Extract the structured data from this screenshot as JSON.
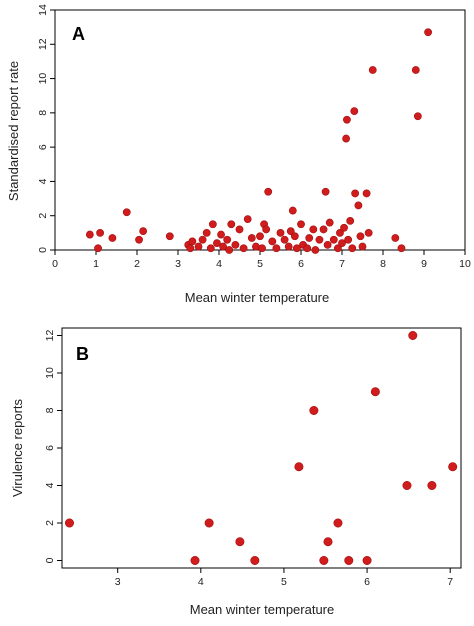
{
  "colors": {
    "point": "#d01c1c",
    "point_edge": "#a01010",
    "frame": "#000000"
  },
  "chart_data": [
    {
      "type": "scatter",
      "panel_label": "A",
      "xlabel": "Mean winter temperature",
      "ylabel": "Standardised report rate",
      "xlim": [
        0,
        10
      ],
      "ylim": [
        0,
        14
      ],
      "xticks": [
        0,
        1,
        2,
        3,
        4,
        5,
        6,
        7,
        8,
        9,
        10
      ],
      "yticks": [
        0,
        2,
        4,
        6,
        8,
        10,
        12,
        14
      ],
      "points": [
        [
          0.85,
          0.9
        ],
        [
          1.05,
          0.1
        ],
        [
          1.1,
          1.0
        ],
        [
          1.4,
          0.7
        ],
        [
          1.75,
          2.2
        ],
        [
          2.05,
          0.6
        ],
        [
          2.15,
          1.1
        ],
        [
          2.8,
          0.8
        ],
        [
          3.25,
          0.3
        ],
        [
          3.3,
          0.1
        ],
        [
          3.35,
          0.5
        ],
        [
          3.5,
          0.2
        ],
        [
          3.6,
          0.6
        ],
        [
          3.7,
          1.0
        ],
        [
          3.8,
          0.1
        ],
        [
          3.85,
          1.5
        ],
        [
          3.95,
          0.4
        ],
        [
          4.05,
          0.9
        ],
        [
          4.1,
          0.2
        ],
        [
          4.2,
          0.6
        ],
        [
          4.25,
          0.0
        ],
        [
          4.3,
          1.5
        ],
        [
          4.4,
          0.3
        ],
        [
          4.5,
          1.2
        ],
        [
          4.6,
          0.1
        ],
        [
          4.7,
          1.8
        ],
        [
          4.8,
          0.7
        ],
        [
          4.9,
          0.2
        ],
        [
          5.0,
          0.8
        ],
        [
          5.05,
          0.1
        ],
        [
          5.1,
          1.5
        ],
        [
          5.15,
          1.2
        ],
        [
          5.2,
          3.4
        ],
        [
          5.3,
          0.5
        ],
        [
          5.4,
          0.1
        ],
        [
          5.5,
          1.0
        ],
        [
          5.6,
          0.6
        ],
        [
          5.7,
          0.2
        ],
        [
          5.75,
          1.1
        ],
        [
          5.8,
          2.3
        ],
        [
          5.85,
          0.8
        ],
        [
          5.9,
          0.1
        ],
        [
          6.0,
          1.5
        ],
        [
          6.05,
          0.3
        ],
        [
          6.15,
          0.1
        ],
        [
          6.2,
          0.7
        ],
        [
          6.3,
          1.2
        ],
        [
          6.35,
          0.0
        ],
        [
          6.45,
          0.6
        ],
        [
          6.55,
          1.2
        ],
        [
          6.6,
          3.4
        ],
        [
          6.65,
          0.3
        ],
        [
          6.7,
          1.6
        ],
        [
          6.8,
          0.6
        ],
        [
          6.9,
          0.1
        ],
        [
          6.95,
          1.0
        ],
        [
          7.0,
          0.4
        ],
        [
          7.05,
          1.3
        ],
        [
          7.1,
          6.5
        ],
        [
          7.12,
          7.6
        ],
        [
          7.15,
          0.6
        ],
        [
          7.2,
          1.7
        ],
        [
          7.25,
          0.1
        ],
        [
          7.3,
          8.1
        ],
        [
          7.32,
          3.3
        ],
        [
          7.4,
          2.6
        ],
        [
          7.45,
          0.8
        ],
        [
          7.5,
          0.2
        ],
        [
          7.6,
          3.3
        ],
        [
          7.65,
          1.0
        ],
        [
          7.75,
          10.5
        ],
        [
          8.3,
          0.7
        ],
        [
          8.45,
          0.1
        ],
        [
          8.8,
          10.5
        ],
        [
          8.85,
          7.8
        ],
        [
          9.1,
          12.7
        ]
      ]
    },
    {
      "type": "scatter",
      "panel_label": "B",
      "xlabel": "Mean winter temperature",
      "ylabel": "Virulence reports",
      "xlim": [
        2.33,
        7.13
      ],
      "ylim": [
        -0.4,
        12.4
      ],
      "xticks": [
        3,
        4,
        5,
        6,
        7
      ],
      "yticks": [
        0,
        2,
        4,
        6,
        8,
        10,
        12
      ],
      "points": [
        [
          2.42,
          2
        ],
        [
          3.93,
          0
        ],
        [
          4.1,
          2
        ],
        [
          4.47,
          1
        ],
        [
          4.65,
          0
        ],
        [
          5.18,
          5
        ],
        [
          5.36,
          8
        ],
        [
          5.48,
          0
        ],
        [
          5.53,
          1
        ],
        [
          5.65,
          2
        ],
        [
          5.78,
          0
        ],
        [
          6.0,
          0
        ],
        [
          6.1,
          9
        ],
        [
          6.48,
          4
        ],
        [
          6.55,
          12
        ],
        [
          6.78,
          4
        ],
        [
          7.03,
          5
        ]
      ]
    }
  ]
}
